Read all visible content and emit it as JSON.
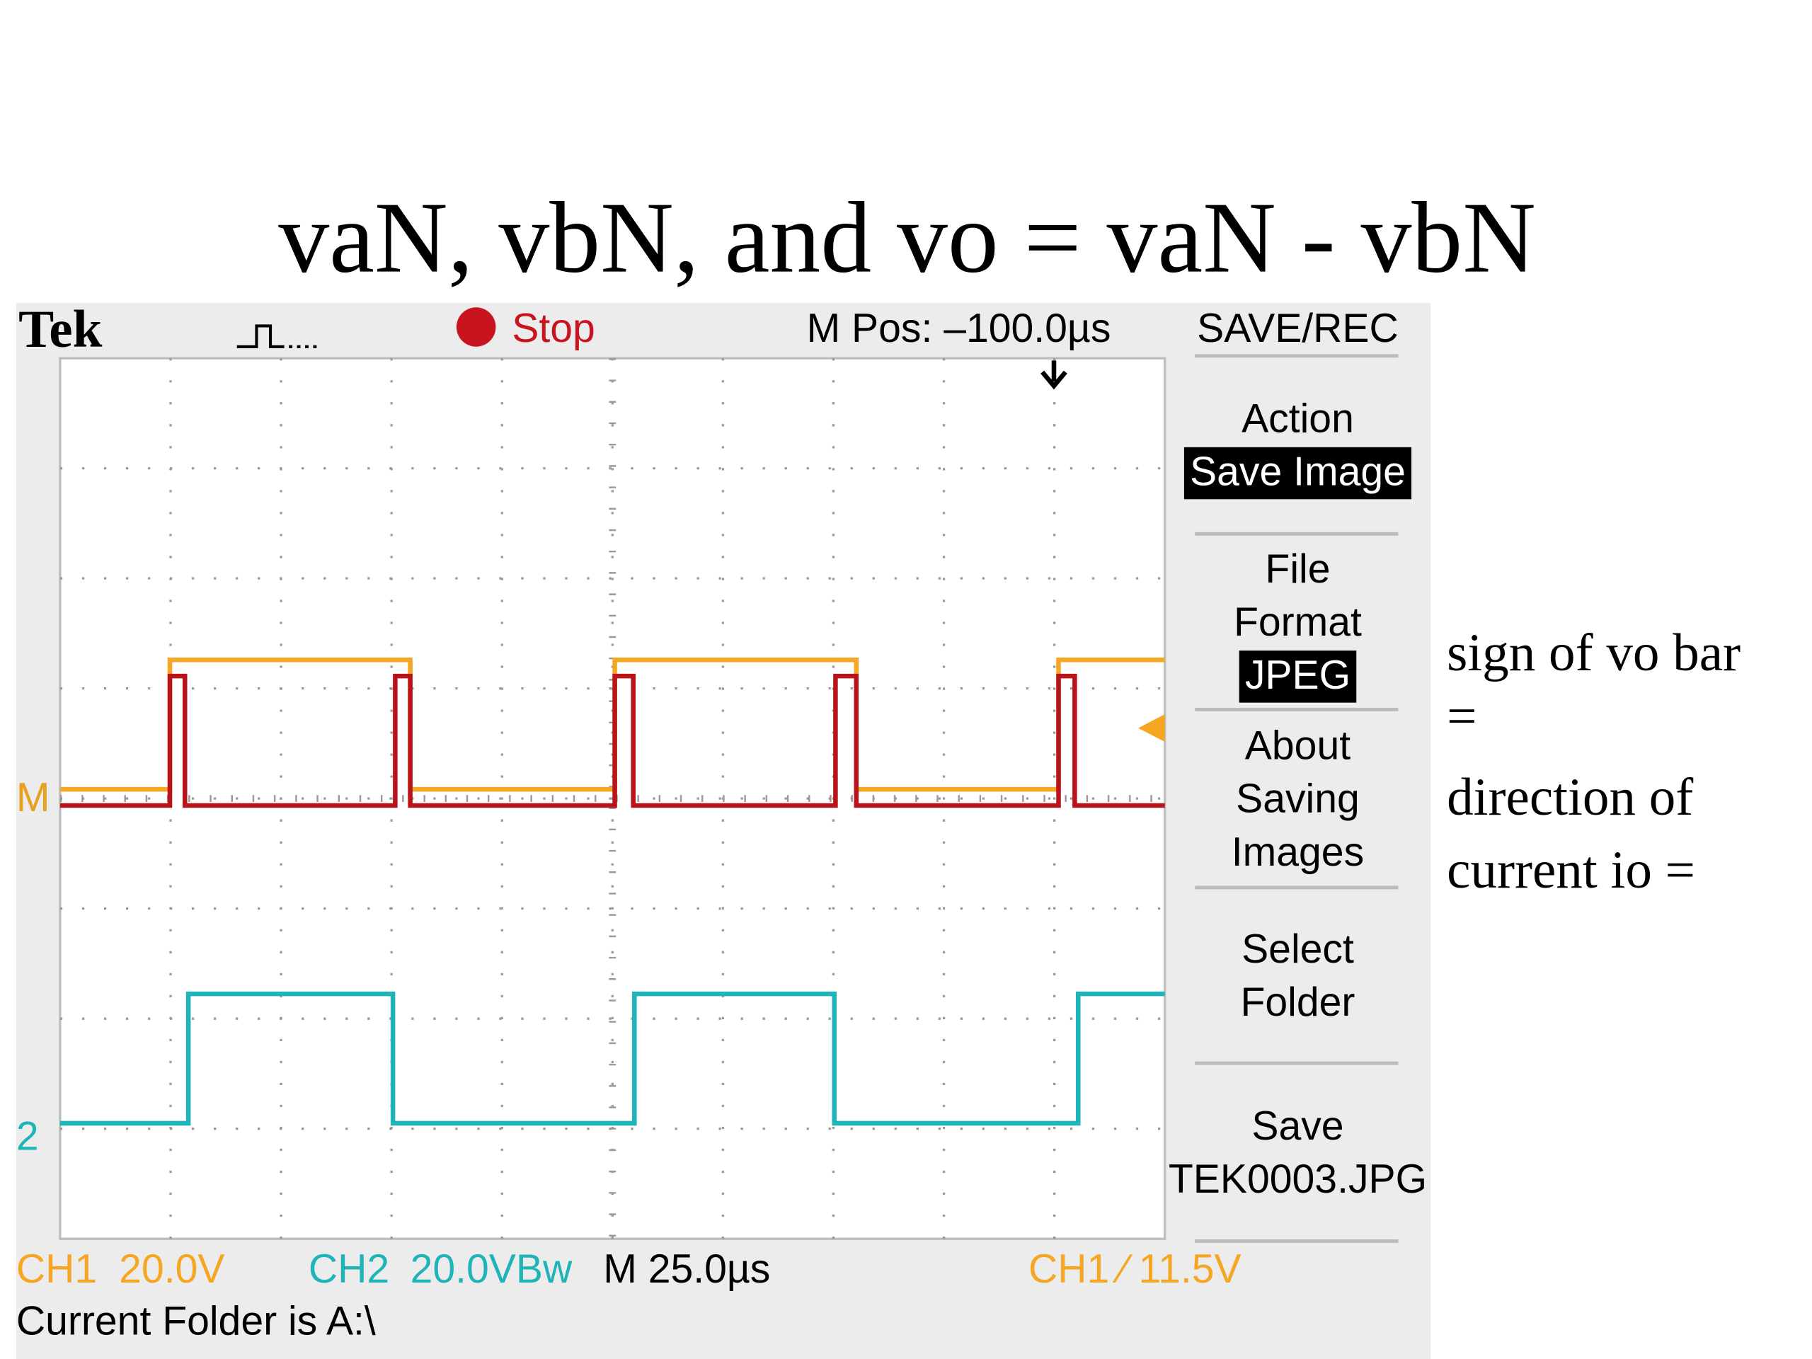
{
  "title": "vaN, vbN, and vo = vaN - vbN",
  "scope": {
    "header": {
      "brand": "Tek",
      "state": "Stop",
      "position": "M Pos: –100.0µs",
      "menu_title": "SAVE/REC"
    },
    "menu": [
      {
        "lines": [
          "Action"
        ],
        "highlight": "Save Image"
      },
      {
        "lines": [
          "File",
          "Format"
        ],
        "highlight": "JPEG"
      },
      {
        "lines": [
          "About",
          "Saving",
          "Images"
        ]
      },
      {
        "lines": [
          "Select",
          "Folder"
        ]
      },
      {
        "lines": [
          "Save",
          "TEK0003.JPG"
        ]
      }
    ],
    "markers": {
      "math": "M",
      "ch2": "2"
    },
    "footer": {
      "ch1": "CH1",
      "ch1_scale": "20.0V",
      "ch2": "CH2",
      "ch2_scale": "20.0VBw",
      "timebase": "M 25.0µs",
      "trigger": "CH1 ⁄ 11.5V"
    },
    "folder": "Current Folder is A:\\"
  },
  "note": [
    "sign of vo bar",
    "=",
    "direction of",
    "current io ="
  ]
}
